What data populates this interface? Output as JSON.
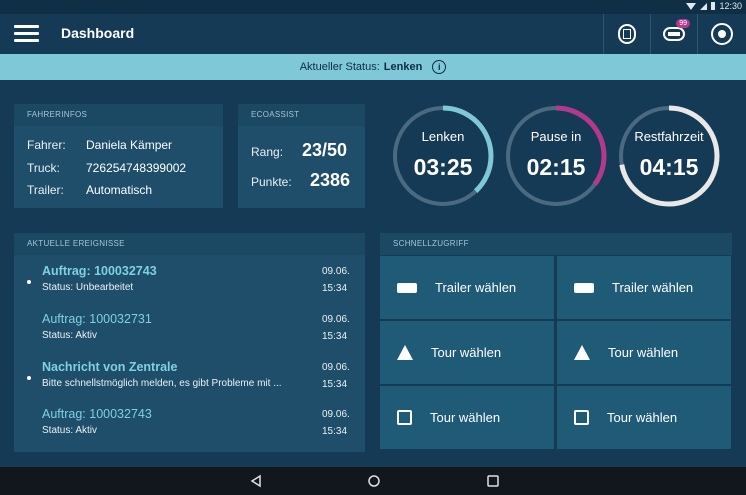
{
  "system": {
    "time": "12:30"
  },
  "appbar": {
    "title": "Dashboard",
    "badge_count": "99",
    "icons": [
      "clipboard-icon",
      "truck-message-icon",
      "globe-icon"
    ]
  },
  "status": {
    "prefix": "Aktueller Status:",
    "value": "Lenken",
    "info": "i"
  },
  "fahrerinfos": {
    "header": "FAHRERINFOS",
    "rows": [
      {
        "label": "Fahrer:",
        "value": "Daniela Kämper"
      },
      {
        "label": "Truck:",
        "value": "726254748399002"
      },
      {
        "label": "Trailer:",
        "value": "Automatisch"
      }
    ]
  },
  "ecoassist": {
    "header": "ECOASSIST",
    "rows": [
      {
        "label": "Rang:",
        "value": "23/50"
      },
      {
        "label": "Punkte:",
        "value": "2386"
      }
    ]
  },
  "gauges": [
    {
      "label": "Lenken",
      "time": "03:25",
      "progress": 0.38,
      "color": "#7ec8d8"
    },
    {
      "label": "Pause in",
      "time": "02:15",
      "progress": 0.35,
      "color": "#b23a8e"
    },
    {
      "label": "Restfahrzeit",
      "time": "04:15",
      "progress": 0.72,
      "color": "#e8e8e8"
    }
  ],
  "ereignisse": {
    "header": "AKTUELLE EREIGNISSE",
    "items": [
      {
        "title": "Auftrag: 100032743",
        "sub": "Status: Unbearbeitet",
        "date": "09.06.",
        "time": "15:34",
        "unread": true
      },
      {
        "title": "Auftrag: 100032731",
        "sub": "Status: Aktiv",
        "date": "09.06.",
        "time": "15:34",
        "unread": false
      },
      {
        "title": "Nachricht von Zentrale",
        "sub": "Bitte schnellstmöglich melden, es gibt Probleme mit ...",
        "date": "09.06.",
        "time": "15:34",
        "unread": true
      },
      {
        "title": "Auftrag: 100032743",
        "sub": "Status: Aktiv",
        "date": "09.06.",
        "time": "15:34",
        "unread": false
      }
    ]
  },
  "schnellzugriff": {
    "header": "SCHNELLZUGRIFF",
    "tiles": [
      {
        "label": "Trailer wählen",
        "icon": "trailer-icon"
      },
      {
        "label": "Trailer wählen",
        "icon": "trailer-icon"
      },
      {
        "label": "Tour wählen",
        "icon": "road-icon"
      },
      {
        "label": "Tour wählen",
        "icon": "road-icon"
      },
      {
        "label": "Tour wählen",
        "icon": "route-sign-icon"
      },
      {
        "label": "Tour wählen",
        "icon": "route-sign-icon"
      }
    ]
  }
}
